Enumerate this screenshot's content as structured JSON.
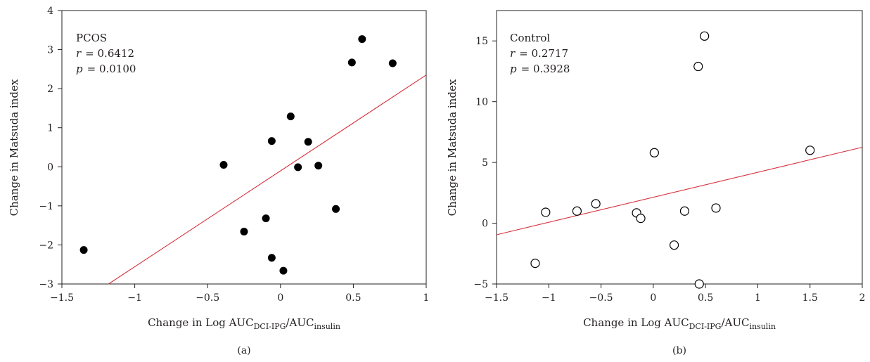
{
  "colors": {
    "axis": "#231f20",
    "fit_line": "#d62f3b",
    "marker": "#000000"
  },
  "chart_data": [
    {
      "type": "scatter",
      "panel_label": "(a)",
      "annotation": {
        "group": "PCOS",
        "r_text": "r",
        "r_value": "= 0.6412",
        "p_text": "p",
        "p_value": "= 0.0100"
      },
      "xlabel": {
        "prefix": "Change in Log AUC",
        "sub1": "DCI-IPG",
        "mid": "/AUC",
        "sub2": "insulin"
      },
      "ylabel": "Change in Matsuda index",
      "xlim": [
        -1.5,
        1
      ],
      "ylim": [
        -3,
        4
      ],
      "xticks": [
        -1.5,
        -1,
        -0.5,
        0,
        0.5,
        1
      ],
      "xtick_labels": [
        "−1.5",
        "−1",
        "−0.5",
        "0",
        "0.5",
        "1"
      ],
      "yticks": [
        -3,
        -2,
        -1,
        0,
        1,
        2,
        3,
        4
      ],
      "ytick_labels": [
        "−3",
        "−2",
        "−1",
        "0",
        "1",
        "2",
        "3",
        "4"
      ],
      "marker": "filled-circle",
      "points": [
        {
          "x": -1.35,
          "y": -2.13
        },
        {
          "x": -0.39,
          "y": 0.05
        },
        {
          "x": -0.25,
          "y": -1.66
        },
        {
          "x": -0.1,
          "y": -1.32
        },
        {
          "x": -0.06,
          "y": 0.66
        },
        {
          "x": -0.06,
          "y": -2.33
        },
        {
          "x": 0.02,
          "y": -2.66
        },
        {
          "x": 0.07,
          "y": 1.29
        },
        {
          "x": 0.12,
          "y": -0.01
        },
        {
          "x": 0.19,
          "y": 0.64
        },
        {
          "x": 0.26,
          "y": 0.03
        },
        {
          "x": 0.38,
          "y": -1.08
        },
        {
          "x": 0.49,
          "y": 2.67
        },
        {
          "x": 0.56,
          "y": 3.27
        },
        {
          "x": 0.77,
          "y": 2.65
        }
      ],
      "fit_line": [
        {
          "x": -1.18,
          "y": -3.0
        },
        {
          "x": 1.0,
          "y": 2.35
        }
      ],
      "grid": false
    },
    {
      "type": "scatter",
      "panel_label": "(b)",
      "annotation": {
        "group": "Control",
        "r_text": "r",
        "r_value": "= 0.2717",
        "p_text": "p",
        "p_value": "= 0.3928"
      },
      "xlabel": {
        "prefix": "Change in Log AUC",
        "sub1": "DCI-IPG",
        "mid": "/AUC",
        "sub2": "insulin"
      },
      "ylabel": "Change in Matsuda index",
      "xlim": [
        -1.5,
        2
      ],
      "ylim": [
        -5,
        17.5
      ],
      "xticks": [
        -1.5,
        -1,
        -0.5,
        0,
        0.5,
        1,
        1.5,
        2
      ],
      "xtick_labels": [
        "−1.5",
        "−1",
        "−0.5",
        "0",
        "0.5",
        "1",
        "1.5",
        "2"
      ],
      "yticks": [
        -5,
        0,
        5,
        10,
        15
      ],
      "ytick_labels": [
        "−5",
        "0",
        "5",
        "10",
        "15"
      ],
      "marker": "open-circle",
      "points": [
        {
          "x": -1.13,
          "y": -3.3
        },
        {
          "x": -1.03,
          "y": 0.9
        },
        {
          "x": -0.73,
          "y": 1.0
        },
        {
          "x": -0.55,
          "y": 1.6
        },
        {
          "x": -0.16,
          "y": 0.85
        },
        {
          "x": -0.12,
          "y": 0.4
        },
        {
          "x": 0.01,
          "y": 5.8
        },
        {
          "x": 0.2,
          "y": -1.8
        },
        {
          "x": 0.3,
          "y": 1.0
        },
        {
          "x": 0.43,
          "y": 12.9
        },
        {
          "x": 0.49,
          "y": 15.4
        },
        {
          "x": 0.44,
          "y": -5.0
        },
        {
          "x": 0.6,
          "y": 1.25
        },
        {
          "x": 1.5,
          "y": 6.0
        }
      ],
      "fit_line": [
        {
          "x": -1.5,
          "y": -0.95
        },
        {
          "x": 2.0,
          "y": 6.25
        }
      ],
      "grid": false
    }
  ]
}
